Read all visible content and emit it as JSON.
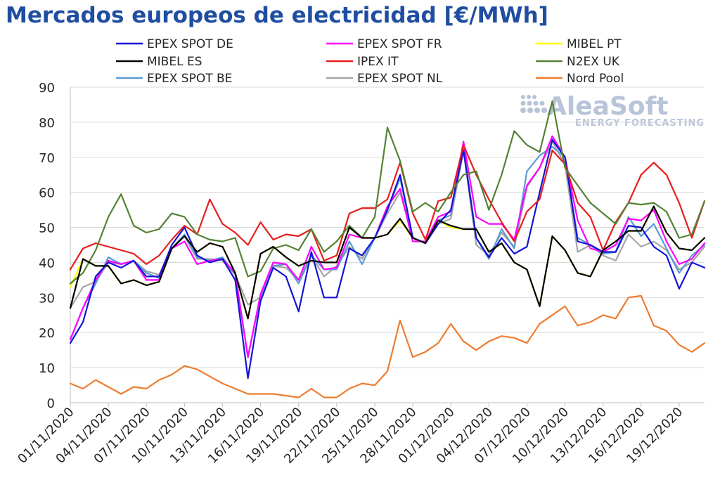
{
  "title": "Mercados europeos de electricidad [€/MWh]",
  "logo": {
    "brand": "AleaSoft",
    "tagline": "ENERGY FORECASTING"
  },
  "chart_data": {
    "type": "line",
    "title": "Mercados europeos de electricidad [€/MWh]",
    "ylim": [
      0,
      90
    ],
    "yticks": [
      0,
      10,
      20,
      30,
      40,
      50,
      60,
      70,
      80,
      90
    ],
    "grid": true,
    "legend_position": "top",
    "x_start": "01/11/2020",
    "x_tick_labels": [
      "01/11/2020",
      "04/11/2020",
      "07/11/2020",
      "10/11/2020",
      "13/11/2020",
      "16/11/2020",
      "19/11/2020",
      "22/11/2020",
      "25/11/2020",
      "28/11/2020",
      "01/12/2020",
      "04/12/2020",
      "07/12/2020",
      "10/12/2020",
      "13/12/2020",
      "16/12/2020",
      "19/12/2020"
    ],
    "series": [
      {
        "name": "EPEX SPOT DE",
        "color": "#1414d6",
        "values": [
          17,
          23,
          36,
          40,
          38.5,
          40.5,
          36,
          36,
          45,
          50,
          42,
          40,
          41,
          35,
          7,
          29,
          38.5,
          36,
          26,
          43,
          30,
          30,
          44,
          42,
          47,
          55,
          65,
          47,
          45.5,
          51,
          55,
          72,
          47,
          41.5,
          47,
          42.5,
          44.5,
          60,
          75,
          70,
          46,
          45,
          43,
          43,
          50.5,
          50,
          44.5,
          42,
          32.5,
          40,
          38.5
        ]
      },
      {
        "name": "EPEX SPOT FR",
        "color": "#ff00ff",
        "values": [
          18,
          27,
          35,
          40.5,
          39.5,
          40.5,
          35,
          35,
          44,
          46,
          39.5,
          40.5,
          41,
          37,
          13,
          31,
          40,
          39.5,
          35,
          44.5,
          38,
          38.5,
          48,
          47,
          47,
          56,
          61,
          46,
          46,
          53,
          54.5,
          74.5,
          53,
          51,
          51,
          46.5,
          62,
          67,
          76,
          70,
          52,
          44,
          43,
          45,
          52.5,
          52,
          55,
          46,
          39.5,
          41,
          45.5
        ]
      },
      {
        "name": "MIBEL PT",
        "color": "#ffff00",
        "values": [
          33,
          41,
          39,
          39,
          34,
          35,
          33.5,
          34.5,
          44,
          47.5,
          43,
          45.5,
          44.5,
          37,
          24,
          42.5,
          44.5,
          41.5,
          39,
          40.5,
          40,
          40,
          50,
          47,
          47,
          48,
          52,
          47,
          45.5,
          52,
          50,
          49.5,
          49.5,
          43,
          45.5,
          40,
          38,
          27.5,
          47.5,
          43.5,
          37,
          36,
          43.5,
          46,
          49,
          49,
          56,
          48.5,
          44,
          43.5,
          47
        ]
      },
      {
        "name": "MIBEL ES",
        "color": "#000000",
        "values": [
          27,
          41,
          39,
          39,
          34,
          35,
          33.5,
          34.5,
          44,
          47.5,
          43,
          45.5,
          44.5,
          37,
          24,
          42.5,
          44.5,
          41.5,
          39,
          40.5,
          40,
          40,
          50,
          47,
          47,
          48,
          52.5,
          47,
          45.5,
          52,
          50.5,
          49.5,
          49.5,
          43,
          45.5,
          40,
          38,
          27.5,
          47.5,
          43.5,
          37,
          36,
          43.5,
          46,
          49,
          49,
          56,
          48.5,
          44,
          43.5,
          47
        ]
      },
      {
        "name": "IPEX IT",
        "color": "#e81d1d",
        "values": [
          38,
          44,
          45.5,
          44.5,
          43.5,
          42.5,
          39.5,
          42,
          46.5,
          50.5,
          48,
          58,
          51,
          48.5,
          45,
          51.5,
          46.5,
          48,
          47.5,
          49.5,
          40.5,
          42,
          54,
          55.5,
          55.5,
          58,
          68.5,
          54,
          46.5,
          57.5,
          58.5,
          73.5,
          65,
          58,
          51.5,
          46,
          54.5,
          58,
          72,
          68,
          57,
          53,
          43.5,
          51.5,
          57,
          65,
          68.5,
          65,
          57,
          47,
          57.5
        ]
      },
      {
        "name": "N2EX UK",
        "color": "#548235",
        "values": [
          34,
          37,
          43.5,
          53,
          59.5,
          50.5,
          48.5,
          49.5,
          54,
          53,
          48,
          46.5,
          46,
          47,
          36,
          37.5,
          44,
          45,
          43.5,
          49.5,
          43,
          46,
          50.5,
          47,
          53,
          78.5,
          69,
          54.5,
          57,
          54.5,
          60,
          65,
          66,
          55,
          65,
          77.5,
          73.5,
          71.5,
          86,
          67,
          62,
          57,
          54,
          51,
          57,
          56.5,
          57,
          54.5,
          47,
          48,
          57.5
        ]
      },
      {
        "name": "EPEX SPOT BE",
        "color": "#5b9bd5",
        "values": [
          18,
          27,
          34,
          41.5,
          39.5,
          40.5,
          37,
          35.5,
          44,
          48,
          41.5,
          40.5,
          41.5,
          36.5,
          13,
          30.5,
          39,
          39.5,
          34,
          42,
          38,
          38,
          46,
          39.5,
          47,
          55,
          64,
          47,
          45.5,
          52,
          53.5,
          73,
          47,
          41,
          49.5,
          44,
          66,
          70.5,
          73,
          70,
          47,
          45,
          42.5,
          43,
          53,
          47.5,
          51,
          44,
          37,
          42,
          45
        ]
      },
      {
        "name": "EPEX SPOT NL",
        "color": "#a6a6a6",
        "values": [
          27,
          33,
          34.5,
          40,
          39.5,
          40.5,
          37.5,
          36.5,
          44,
          47.5,
          41,
          41,
          40.5,
          36.5,
          28,
          30,
          39,
          38.5,
          35,
          42,
          36,
          39,
          44.5,
          41,
          47,
          54,
          60,
          47,
          45.5,
          51,
          52.5,
          72,
          45,
          42,
          48.5,
          44.5,
          61.5,
          67,
          74.5,
          68,
          43,
          45,
          42,
          40.5,
          48,
          44.5,
          46,
          43.5,
          38,
          40,
          44.5
        ]
      },
      {
        "name": "Nord Pool",
        "color": "#ed7d31",
        "values": [
          5.5,
          4,
          6.5,
          4.5,
          2.5,
          4.5,
          4,
          6.5,
          8,
          10.5,
          9.5,
          7.5,
          5.5,
          4,
          2.5,
          2.5,
          2.5,
          2,
          1.5,
          4,
          1.5,
          1.5,
          4,
          5.5,
          5,
          9,
          23.5,
          13,
          14.5,
          17,
          22.5,
          17.5,
          15,
          17.5,
          19,
          18.5,
          17,
          22.5,
          25,
          27.5,
          22,
          23,
          25,
          24,
          30,
          30.5,
          22,
          20.5,
          16.5,
          14.5,
          17
        ]
      }
    ]
  }
}
